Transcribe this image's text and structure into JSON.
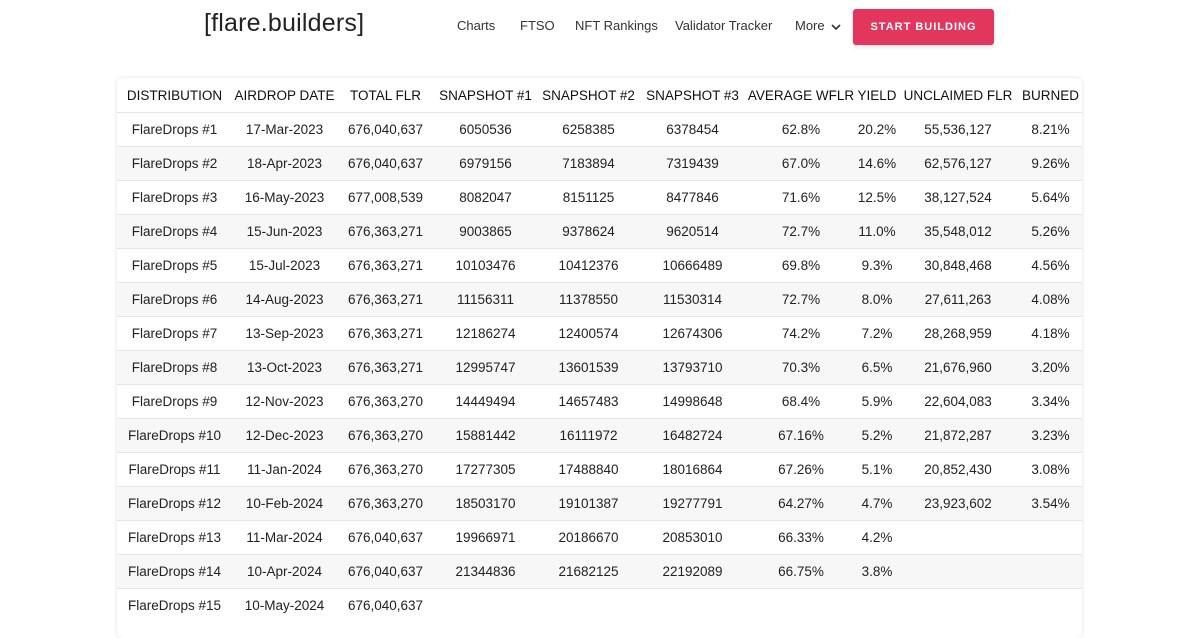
{
  "header": {
    "logo": "[flare.builders]",
    "nav": [
      "Charts",
      "FTSO",
      "NFT Rankings",
      "Validator Tracker",
      "More"
    ],
    "cta": "START BUILDING"
  },
  "table": {
    "columns": [
      "DISTRIBUTION",
      "AIRDROP DATE",
      "TOTAL FLR",
      "SNAPSHOT #1",
      "SNAPSHOT #2",
      "SNAPSHOT #3",
      "AVERAGE WFLR",
      "YIELD",
      "UNCLAIMED FLR",
      "BURNED"
    ],
    "rows": [
      [
        "FlareDrops #1",
        "17-Mar-2023",
        "676,040,637",
        "6050536",
        "6258385",
        "6378454",
        "62.8%",
        "20.2%",
        "55,536,127",
        "8.21%"
      ],
      [
        "FlareDrops #2",
        "18-Apr-2023",
        "676,040,637",
        "6979156",
        "7183894",
        "7319439",
        "67.0%",
        "14.6%",
        "62,576,127",
        "9.26%"
      ],
      [
        "FlareDrops #3",
        "16-May-2023",
        "677,008,539",
        "8082047",
        "8151125",
        "8477846",
        "71.6%",
        "12.5%",
        "38,127,524",
        "5.64%"
      ],
      [
        "FlareDrops #4",
        "15-Jun-2023",
        "676,363,271",
        "9003865",
        "9378624",
        "9620514",
        "72.7%",
        "11.0%",
        "35,548,012",
        "5.26%"
      ],
      [
        "FlareDrops #5",
        "15-Jul-2023",
        "676,363,271",
        "10103476",
        "10412376",
        "10666489",
        "69.8%",
        "9.3%",
        "30,848,468",
        "4.56%"
      ],
      [
        "FlareDrops #6",
        "14-Aug-2023",
        "676,363,271",
        "11156311",
        "11378550",
        "11530314",
        "72.7%",
        "8.0%",
        "27,611,263",
        "4.08%"
      ],
      [
        "FlareDrops #7",
        "13-Sep-2023",
        "676,363,271",
        "12186274",
        "12400574",
        "12674306",
        "74.2%",
        "7.2%",
        "28,268,959",
        "4.18%"
      ],
      [
        "FlareDrops #8",
        "13-Oct-2023",
        "676,363,271",
        "12995747",
        "13601539",
        "13793710",
        "70.3%",
        "6.5%",
        "21,676,960",
        "3.20%"
      ],
      [
        "FlareDrops #9",
        "12-Nov-2023",
        "676,363,270",
        "14449494",
        "14657483",
        "14998648",
        "68.4%",
        "5.9%",
        "22,604,083",
        "3.34%"
      ],
      [
        "FlareDrops #10",
        "12-Dec-2023",
        "676,363,270",
        "15881442",
        "16111972",
        "16482724",
        "67.16%",
        "5.2%",
        "21,872,287",
        "3.23%"
      ],
      [
        "FlareDrops #11",
        "11-Jan-2024",
        "676,363,270",
        "17277305",
        "17488840",
        "18016864",
        "67.26%",
        "5.1%",
        "20,852,430",
        "3.08%"
      ],
      [
        "FlareDrops #12",
        "10-Feb-2024",
        "676,363,270",
        "18503170",
        "19101387",
        "19277791",
        "64.27%",
        "4.7%",
        "23,923,602",
        "3.54%"
      ],
      [
        "FlareDrops #13",
        "11-Mar-2024",
        "676,040,637",
        "19966971",
        "20186670",
        "20853010",
        "66.33%",
        "4.2%",
        "",
        ""
      ],
      [
        "FlareDrops #14",
        "10-Apr-2024",
        "676,040,637",
        "21344836",
        "21682125",
        "22192089",
        "66.75%",
        "3.8%",
        "",
        ""
      ],
      [
        "FlareDrops #15",
        "10-May-2024",
        "676,040,637",
        "",
        "",
        "",
        "",
        "",
        "",
        ""
      ]
    ]
  }
}
